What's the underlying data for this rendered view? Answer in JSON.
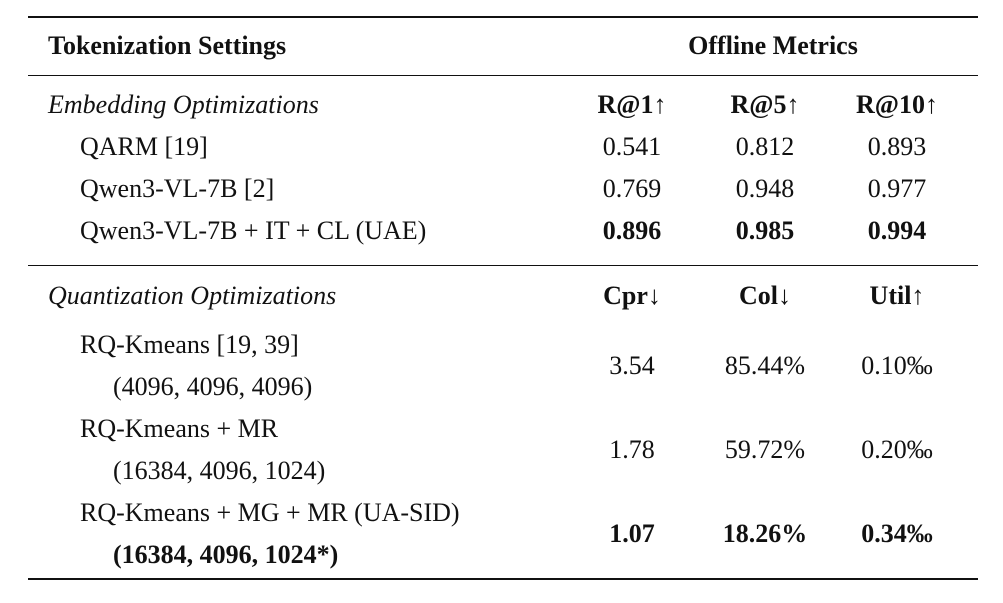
{
  "header": {
    "settings": "Tokenization Settings",
    "metrics": "Offline Metrics"
  },
  "sections": [
    {
      "title": "Embedding Optimizations",
      "columns": [
        "R@1↑",
        "R@5↑",
        "R@10↑"
      ],
      "rows": [
        {
          "label": [
            "QARM [19]"
          ],
          "values": [
            "0.541",
            "0.812",
            "0.893"
          ],
          "bold": false
        },
        {
          "label": [
            "Qwen3-VL-7B [2]"
          ],
          "values": [
            "0.769",
            "0.948",
            "0.977"
          ],
          "bold": false
        },
        {
          "label": [
            "Qwen3-VL-7B + IT + CL (UAE)"
          ],
          "values": [
            "0.896",
            "0.985",
            "0.994"
          ],
          "bold": true
        }
      ]
    },
    {
      "title": "Quantization Optimizations",
      "columns": [
        "Cpr↓",
        "Col↓",
        "Util↑"
      ],
      "rows": [
        {
          "label": [
            "RQ-Kmeans [19, 39]",
            "(4096, 4096, 4096)"
          ],
          "values": [
            "3.54",
            "85.44%",
            "0.10‰"
          ],
          "bold": false
        },
        {
          "label": [
            "RQ-Kmeans + MR",
            "(16384, 4096, 1024)"
          ],
          "values": [
            "1.78",
            "59.72%",
            "0.20‰"
          ],
          "bold": false
        },
        {
          "label": [
            "RQ-Kmeans + MG + MR (UA-SID)",
            "(16384, 4096, 1024*)"
          ],
          "values": [
            "1.07",
            "18.26%",
            "0.34‰"
          ],
          "bold": true
        }
      ]
    }
  ]
}
